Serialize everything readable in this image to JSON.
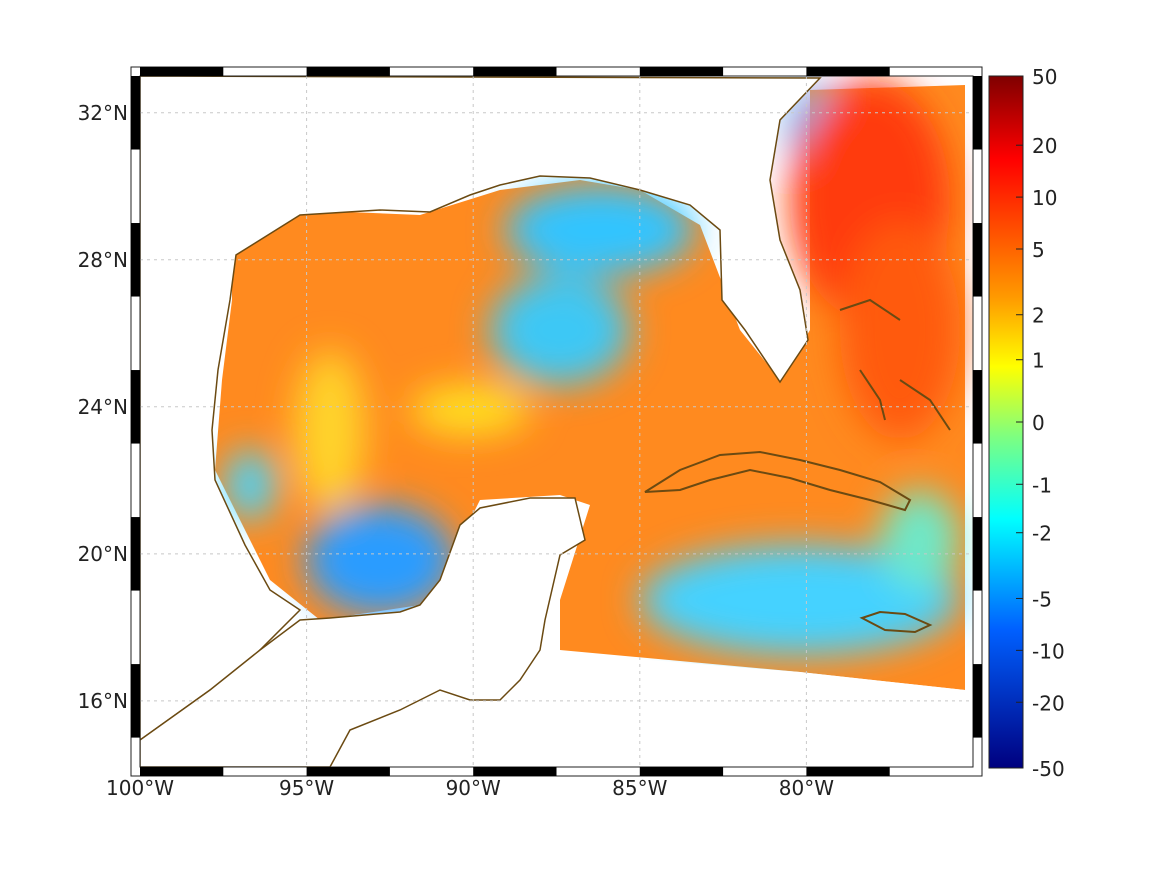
{
  "map": {
    "lat_ticks": [
      {
        "lat": 32,
        "label": "32°N"
      },
      {
        "lat": 28,
        "label": "28°N"
      },
      {
        "lat": 24,
        "label": "24°N"
      },
      {
        "lat": 20,
        "label": "20°N"
      },
      {
        "lat": 16,
        "label": "16°N"
      }
    ],
    "lon_ticks": [
      {
        "lon": -100,
        "label": "100°W"
      },
      {
        "lon": -95,
        "label": "95°W"
      },
      {
        "lon": -90,
        "label": "90°W"
      },
      {
        "lon": -85,
        "label": "85°W"
      },
      {
        "lon": -80,
        "label": "80°W"
      }
    ],
    "extent": {
      "lon_min": -100,
      "lon_max": -75,
      "lat_min": 14.2,
      "lat_max": 33
    },
    "coast_color": "#6b4a12",
    "ocean_regions": [
      {
        "name": "western-gulf",
        "level": 5
      },
      {
        "name": "northeast-gulf",
        "level": -2
      },
      {
        "name": "bay-of-campeche",
        "level": -5
      },
      {
        "name": "loop-current",
        "level": 5
      },
      {
        "name": "atlantic",
        "level": 12
      },
      {
        "name": "caribbean",
        "level": -1
      }
    ]
  },
  "colorbar": {
    "labels": [
      "50",
      "20",
      "10",
      "5",
      "2",
      "1",
      "0",
      "-1",
      "-2",
      "-5",
      "-10",
      "-20",
      "-50"
    ],
    "values": [
      50,
      20,
      10,
      5,
      2,
      1,
      0,
      -1,
      -2,
      -5,
      -10,
      -20,
      -50
    ]
  }
}
